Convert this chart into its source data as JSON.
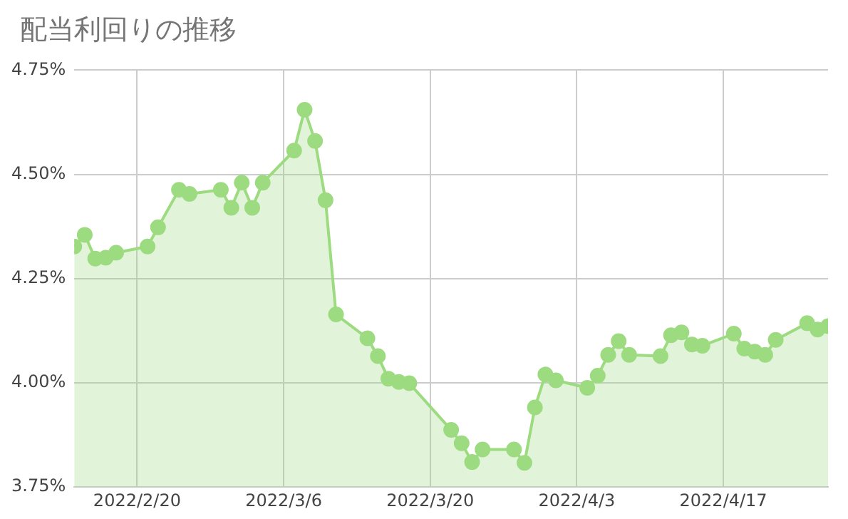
{
  "chart_data": {
    "type": "area",
    "title": "配当利回りの推移",
    "x": [
      "2022-02-14",
      "2022-02-15",
      "2022-02-16",
      "2022-02-17",
      "2022-02-18",
      "2022-02-21",
      "2022-02-22",
      "2022-02-24",
      "2022-02-25",
      "2022-02-28",
      "2022-03-01",
      "2022-03-02",
      "2022-03-03",
      "2022-03-04",
      "2022-03-07",
      "2022-03-08",
      "2022-03-09",
      "2022-03-10",
      "2022-03-11",
      "2022-03-14",
      "2022-03-15",
      "2022-03-16",
      "2022-03-17",
      "2022-03-18",
      "2022-03-22",
      "2022-03-23",
      "2022-03-24",
      "2022-03-25",
      "2022-03-28",
      "2022-03-29",
      "2022-03-30",
      "2022-03-31",
      "2022-04-01",
      "2022-04-04",
      "2022-04-05",
      "2022-04-06",
      "2022-04-07",
      "2022-04-08",
      "2022-04-11",
      "2022-04-12",
      "2022-04-13",
      "2022-04-14",
      "2022-04-15",
      "2022-04-18",
      "2022-04-19",
      "2022-04-20",
      "2022-04-21",
      "2022-04-22",
      "2022-04-25",
      "2022-04-26",
      "2022-04-27"
    ],
    "series": [
      {
        "color": "#9ddb80",
        "values": [
          4.327,
          4.355,
          4.298,
          4.3,
          4.312,
          4.327,
          4.373,
          4.463,
          4.453,
          4.463,
          4.42,
          4.48,
          4.42,
          4.48,
          4.557,
          4.655,
          4.58,
          4.438,
          4.164,
          4.107,
          4.064,
          4.01,
          4.002,
          3.999,
          3.887,
          3.855,
          3.81,
          3.84,
          3.84,
          3.808,
          3.941,
          4.02,
          4.006,
          3.988,
          4.017,
          4.067,
          4.1,
          4.067,
          4.064,
          4.114,
          4.121,
          4.092,
          4.089,
          4.118,
          4.082,
          4.075,
          4.067,
          4.103,
          4.143,
          4.128,
          4.136
        ]
      }
    ],
    "xlim": [
      "2022-02-14",
      "2022-04-27"
    ],
    "xticks": [
      {
        "value": "2022-02-20",
        "label": "2022/2/20"
      },
      {
        "value": "2022-03-06",
        "label": "2022/3/6"
      },
      {
        "value": "2022-03-20",
        "label": "2022/3/20"
      },
      {
        "value": "2022-04-03",
        "label": "2022/4/3"
      },
      {
        "value": "2022-04-17",
        "label": "2022/4/17"
      }
    ],
    "ylim": [
      3.75,
      4.75
    ],
    "yticks": [
      {
        "value": 3.75,
        "label": "3.75%"
      },
      {
        "value": 4,
        "label": "4.00%"
      },
      {
        "value": 4.25,
        "label": "4.25%"
      },
      {
        "value": 4.5,
        "label": "4.50%"
      },
      {
        "value": 4.75,
        "label": "4.75%"
      }
    ],
    "grid": true,
    "marker": "circle",
    "legend": false
  }
}
